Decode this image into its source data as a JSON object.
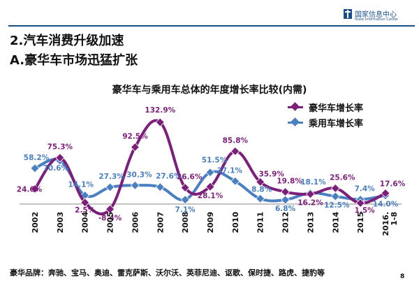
{
  "header": {
    "logo_cn": "国家信息中心",
    "logo_en": "State Information Center",
    "heading1": "2.汽车消费升级加速",
    "heading2": "A.豪华车市场迅猛扩张"
  },
  "chart_data": {
    "type": "line",
    "title": "豪华车与乘用车总体的年度增长率比较(内需)",
    "categories": [
      "2002",
      "2003",
      "2004",
      "2005",
      "2006",
      "2007",
      "2008",
      "2009",
      "2010",
      "2011",
      "2012",
      "2013",
      "2014",
      "2015",
      "2016.1-8"
    ],
    "category_labels": [
      [
        "2002"
      ],
      [
        "2003"
      ],
      [
        "2004"
      ],
      [
        "2005"
      ],
      [
        "2006"
      ],
      [
        "2007"
      ],
      [
        "2008"
      ],
      [
        "2009"
      ],
      [
        "2010"
      ],
      [
        "2011"
      ],
      [
        "2012"
      ],
      [
        "2013"
      ],
      [
        "2014"
      ],
      [
        "2015"
      ],
      [
        "2016.",
        "1-8"
      ]
    ],
    "series": [
      {
        "name": "豪华车增长率",
        "color": "#7b1f7b",
        "values": [
          24.6,
          75.3,
          2.5,
          -8.4,
          92.5,
          132.9,
          26.6,
          28.1,
          85.8,
          35.9,
          19.8,
          16.2,
          25.6,
          1.5,
          17.6
        ],
        "labels": [
          "24.6%",
          "75.3%",
          "2.5%",
          "-8.4%",
          "92.5%",
          "132.9%",
          "26.6%",
          "28.1%",
          "85.8%",
          "35.9%",
          "19.8%",
          "16.2%",
          "25.6%",
          "1.5%",
          "17.6%"
        ]
      },
      {
        "name": "乘用车增长率",
        "color": "#4a7fc1",
        "values": [
          58.2,
          70.6,
          14.1,
          27.3,
          30.3,
          27.6,
          7.1,
          51.5,
          37.1,
          8.8,
          6.8,
          18.1,
          12.5,
          7.4,
          14.0
        ],
        "labels": [
          "58.2%",
          "70.6%",
          "14.1%",
          "27.3%",
          "30.3%",
          "27.6%",
          "7.1%",
          "51.5%",
          "37.1%",
          "8.8%",
          "6.8%",
          "18.1%",
          "12.5%",
          "7.4%",
          "14.0%"
        ]
      }
    ],
    "legend_position": "top-right",
    "grid": false,
    "ylim": [
      -15,
      140
    ]
  },
  "footnote": "豪华品牌：奔驰、宝马、奥迪、雷克萨斯、沃尔沃、英菲尼迪、讴歌、保时捷、路虎、捷豹等",
  "page_number": "8"
}
